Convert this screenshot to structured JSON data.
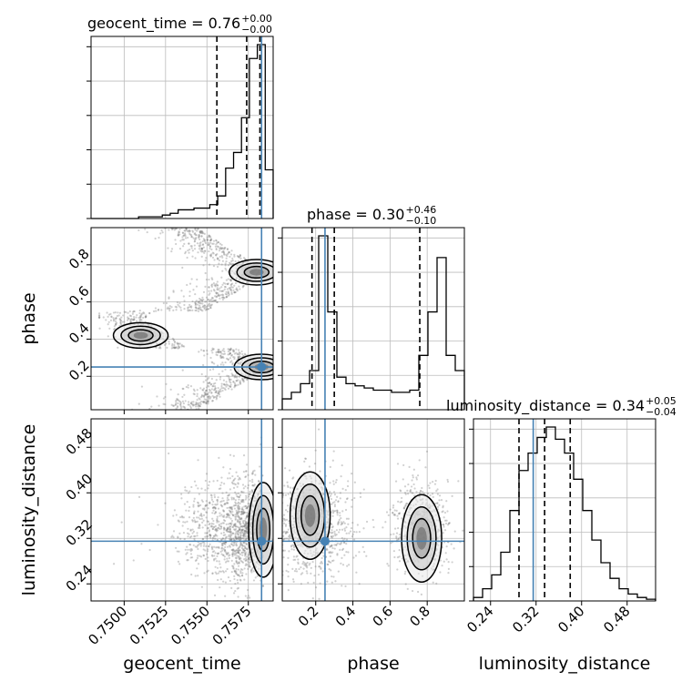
{
  "chart_data": {
    "type": "corner",
    "parameters": [
      "geocent_time",
      "phase",
      "luminosity_distance"
    ],
    "ranges": {
      "geocent_time": [
        0.748,
        0.759
      ],
      "phase": [
        0.02,
        1.0
      ],
      "luminosity_distance": [
        0.21,
        0.53
      ]
    },
    "ticks": {
      "geocent_time": [
        "0.7500",
        "0.7525",
        "0.7550",
        "0.7575"
      ],
      "phase": [
        "0.2",
        "0.4",
        "0.6",
        "0.8"
      ],
      "luminosity_distance": [
        "0.24",
        "0.32",
        "0.40",
        "0.48"
      ]
    },
    "tick_values": {
      "geocent_time": [
        0.75,
        0.7525,
        0.755,
        0.7575
      ],
      "phase": [
        0.2,
        0.4,
        0.6,
        0.8
      ],
      "luminosity_distance": [
        0.24,
        0.32,
        0.4,
        0.48
      ]
    },
    "injection": {
      "geocent_time": 0.7583,
      "phase": 0.25,
      "luminosity_distance": 0.315
    },
    "truth_color": "#4682b4",
    "grid": true,
    "titles": {
      "geocent_time": {
        "label": "geocent_time = 0.76",
        "sup": "+0.00",
        "sub": "−0.00"
      },
      "phase": {
        "label": "phase = 0.30",
        "sup": "+0.46",
        "sub": "−0.10"
      },
      "luminosity_distance": {
        "label": "luminosity_distance = 0.34",
        "sup": "+0.05",
        "sub": "−0.04"
      }
    },
    "histograms": {
      "geocent_time": {
        "bins": [
          0.748,
          0.759
        ],
        "counts": [
          0,
          0,
          0,
          0,
          0,
          0,
          1,
          1,
          1,
          2,
          3,
          5,
          5,
          6,
          6,
          8,
          13,
          29,
          38,
          58,
          92,
          100,
          28
        ],
        "quantiles": [
          0.7556,
          0.7574,
          0.7582
        ]
      },
      "phase": {
        "bins": [
          0.02,
          1.0
        ],
        "counts": [
          5,
          8,
          12,
          18,
          80,
          45,
          15,
          12,
          11,
          10,
          9,
          9,
          8,
          8,
          9,
          25,
          45,
          70,
          25,
          18
        ],
        "quantiles": [
          0.18,
          0.3,
          0.76
        ]
      },
      "luminosity_distance": {
        "bins": [
          0.21,
          0.53
        ],
        "counts": [
          2,
          7,
          15,
          28,
          52,
          75,
          85,
          94,
          100,
          93,
          85,
          70,
          52,
          35,
          22,
          13,
          7,
          4,
          2,
          1
        ],
        "quantiles": [
          0.29,
          0.335,
          0.38
        ]
      }
    },
    "contours_2d": {
      "phase_vs_geocent_time": [
        {
          "x": 0.7583,
          "y": 0.25
        },
        {
          "x": 0.758,
          "y": 0.76
        },
        {
          "x": 0.751,
          "y": 0.42
        }
      ],
      "luminosity_distance_vs_geocent_time": [
        {
          "x": 0.7584,
          "y": 0.335
        }
      ],
      "luminosity_distance_vs_phase": [
        {
          "x": 0.17,
          "y": 0.36
        },
        {
          "x": 0.77,
          "y": 0.32
        }
      ]
    }
  }
}
